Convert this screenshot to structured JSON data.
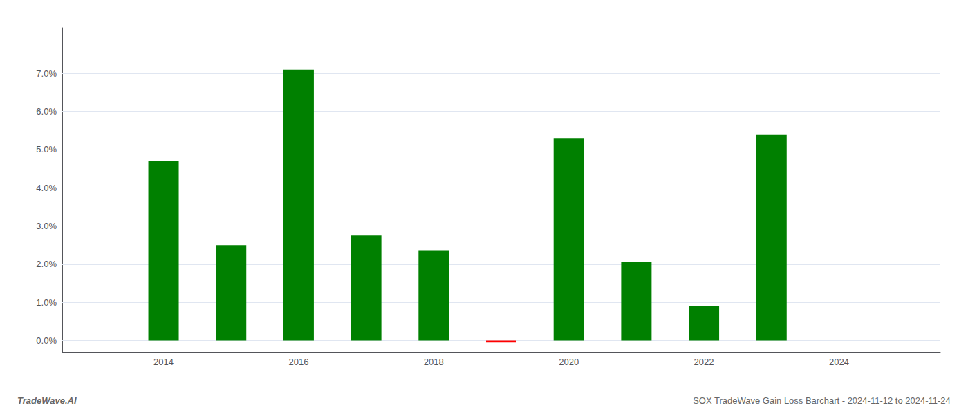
{
  "chart_data": {
    "type": "bar",
    "title": "SOX TradeWave Gain Loss Barchart - 2024-11-12 to 2024-11-24",
    "annotations": [
      "TradeWave.AI"
    ],
    "x": [
      2014,
      2015,
      2016,
      2017,
      2018,
      2019,
      2020,
      2021,
      2022,
      2023
    ],
    "values": [
      0.047,
      0.025,
      0.071,
      0.0275,
      0.0235,
      -0.0005,
      0.053,
      0.0205,
      0.009,
      0.054
    ],
    "colors": [
      "#008000",
      "#008000",
      "#008000",
      "#008000",
      "#008000",
      "#ff0000",
      "#008000",
      "#008000",
      "#008000",
      "#008000"
    ],
    "xlim": [
      2012.5,
      2025.5
    ],
    "xticks": [
      2014,
      2016,
      2018,
      2020,
      2022,
      2024
    ],
    "ylim": [
      -0.003,
      0.082
    ],
    "yticks": [
      {
        "value": 0.0,
        "label": "0.0%"
      },
      {
        "value": 0.01,
        "label": "1.0%"
      },
      {
        "value": 0.02,
        "label": "2.0%"
      },
      {
        "value": 0.03,
        "label": "3.0%"
      },
      {
        "value": 0.04,
        "label": "4.0%"
      },
      {
        "value": 0.05,
        "label": "5.0%"
      },
      {
        "value": 0.06,
        "label": "6.0%"
      },
      {
        "value": 0.07,
        "label": "7.0%"
      }
    ],
    "grid": true
  }
}
